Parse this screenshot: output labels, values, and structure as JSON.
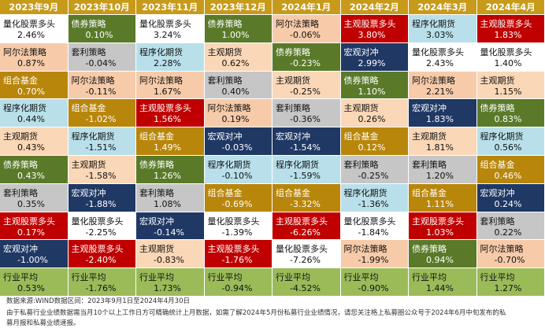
{
  "colors": {
    "header": "#c79a1a",
    "量化股票多头": "#ffffff",
    "债券策略": "#5a7a2a",
    "阿尔法策略": "#f7cba9",
    "主观股票多头": "#c00000",
    "程序化期货": "#b9e0ea",
    "主观期货": "#fad7b6",
    "套利策略": "#c6c6c6",
    "组合基金": "#b8860b",
    "宏观对冲": "#1f3864",
    "行业平均": "#9bbb59"
  },
  "chart_data": {
    "type": "table",
    "months": [
      "2023年9月",
      "2023年10月",
      "2023年11月",
      "2023年12月",
      "2024年1月",
      "2024年2月",
      "2024年3月",
      "2024年4月"
    ],
    "columns": [
      [
        {
          "name": "量化股票多头",
          "value": "2.46%"
        },
        {
          "name": "阿尔法策略",
          "value": "0.87%"
        },
        {
          "name": "组合基金",
          "value": "0.70%"
        },
        {
          "name": "程序化期货",
          "value": "0.44%"
        },
        {
          "name": "主观期货",
          "value": "0.43%"
        },
        {
          "name": "债券策略",
          "value": "0.43%"
        },
        {
          "name": "套利策略",
          "value": "0.35%"
        },
        {
          "name": "主观股票多头",
          "value": "0.17%"
        },
        {
          "name": "宏观对冲",
          "value": "-1.00%"
        },
        {
          "name": "行业平均",
          "value": "0.53%"
        }
      ],
      [
        {
          "name": "债券策略",
          "value": "0.10%"
        },
        {
          "name": "套利策略",
          "value": "-0.04%"
        },
        {
          "name": "阿尔法策略",
          "value": "-0.11%"
        },
        {
          "name": "组合基金",
          "value": "-1.02%"
        },
        {
          "name": "程序化期货",
          "value": "-1.51%"
        },
        {
          "name": "主观期货",
          "value": "-1.58%"
        },
        {
          "name": "宏观对冲",
          "value": "-1.88%"
        },
        {
          "name": "量化股票多头",
          "value": "-2.25%"
        },
        {
          "name": "主观股票多头",
          "value": "-2.40%"
        },
        {
          "name": "行业平均",
          "value": "-1.76%"
        }
      ],
      [
        {
          "name": "量化股票多头",
          "value": "3.24%"
        },
        {
          "name": "程序化期货",
          "value": "2.28%"
        },
        {
          "name": "阿尔法策略",
          "value": "1.67%"
        },
        {
          "name": "主观股票多头",
          "value": "1.56%"
        },
        {
          "name": "组合基金",
          "value": "1.49%"
        },
        {
          "name": "债券策略",
          "value": "1.26%"
        },
        {
          "name": "套利策略",
          "value": "1.08%"
        },
        {
          "name": "宏观对冲",
          "value": "-0.14%"
        },
        {
          "name": "主观期货",
          "value": "-0.83%"
        },
        {
          "name": "行业平均",
          "value": "1.73%"
        }
      ],
      [
        {
          "name": "债券策略",
          "value": "1.00%"
        },
        {
          "name": "主观期货",
          "value": "0.62%"
        },
        {
          "name": "套利策略",
          "value": "0.40%"
        },
        {
          "name": "阿尔法策略",
          "value": "0.19%"
        },
        {
          "name": "宏观对冲",
          "value": "-0.03%"
        },
        {
          "name": "程序化期货",
          "value": "-0.10%"
        },
        {
          "name": "组合基金",
          "value": "-0.69%"
        },
        {
          "name": "量化股票多头",
          "value": "-1.39%"
        },
        {
          "name": "主观股票多头",
          "value": "-1.76%"
        },
        {
          "name": "行业平均",
          "value": "-0.94%"
        }
      ],
      [
        {
          "name": "阿尔法策略",
          "value": "-0.06%"
        },
        {
          "name": "债券策略",
          "value": "-0.23%"
        },
        {
          "name": "主观期货",
          "value": "-0.25%"
        },
        {
          "name": "套利策略",
          "value": "-0.36%"
        },
        {
          "name": "宏观对冲",
          "value": "-1.54%"
        },
        {
          "name": "程序化期货",
          "value": "-1.59%"
        },
        {
          "name": "组合基金",
          "value": "-3.32%"
        },
        {
          "name": "主观股票多头",
          "value": "-6.26%"
        },
        {
          "name": "量化股票多头",
          "value": "-7.26%"
        },
        {
          "name": "行业平均",
          "value": "-4.52%"
        }
      ],
      [
        {
          "name": "主观股票多头",
          "value": "3.80%"
        },
        {
          "name": "宏观对冲",
          "value": "2.99%"
        },
        {
          "name": "债券策略",
          "value": "1.10%"
        },
        {
          "name": "主观期货",
          "value": "0.26%"
        },
        {
          "name": "组合基金",
          "value": "0.12%"
        },
        {
          "name": "套利策略",
          "value": "-0.25%"
        },
        {
          "name": "程序化期货",
          "value": "-1.36%"
        },
        {
          "name": "量化股票多头",
          "value": "-1.84%"
        },
        {
          "name": "阿尔法策略",
          "value": "-1.99%"
        },
        {
          "name": "行业平均",
          "value": "-0.90%"
        }
      ],
      [
        {
          "name": "程序化期货",
          "value": "3.03%"
        },
        {
          "name": "量化股票多头",
          "value": "2.43%"
        },
        {
          "name": "阿尔法策略",
          "value": "2.21%"
        },
        {
          "name": "宏观对冲",
          "value": "1.83%"
        },
        {
          "name": "主观期货",
          "value": "1.81%"
        },
        {
          "name": "套利策略",
          "value": "1.20%"
        },
        {
          "name": "组合基金",
          "value": "1.11%"
        },
        {
          "name": "主观股票多头",
          "value": "1.03%"
        },
        {
          "name": "债券策略",
          "value": "0.94%"
        },
        {
          "name": "行业平均",
          "value": "1.44%"
        }
      ],
      [
        {
          "name": "主观股票多头",
          "value": "1.83%"
        },
        {
          "name": "量化股票多头",
          "value": "1.40%"
        },
        {
          "name": "主观期货",
          "value": "1.15%"
        },
        {
          "name": "债券策略",
          "value": "0.83%"
        },
        {
          "name": "程序化期货",
          "value": "0.56%"
        },
        {
          "name": "组合基金",
          "value": "0.46%"
        },
        {
          "name": "宏观对冲",
          "value": "0.24%"
        },
        {
          "name": "套利策略",
          "value": "0.22%"
        },
        {
          "name": "阿尔法策略",
          "value": "-0.70%"
        },
        {
          "name": "行业平均",
          "value": "1.27%"
        }
      ]
    ]
  },
  "footnote": {
    "source": "数据来源:WIND数据区间：2023年9月1日至2024年4月30日",
    "line1": "由于私募行业业绩数据需当月10个以上工作日方可精确统计上月数据，如需了解2024年5月份私募行业业绩情况，请您关注格上私募圈公众号于2024年6月中旬发布的私",
    "line2": "募月报和私募业绩速报。"
  }
}
